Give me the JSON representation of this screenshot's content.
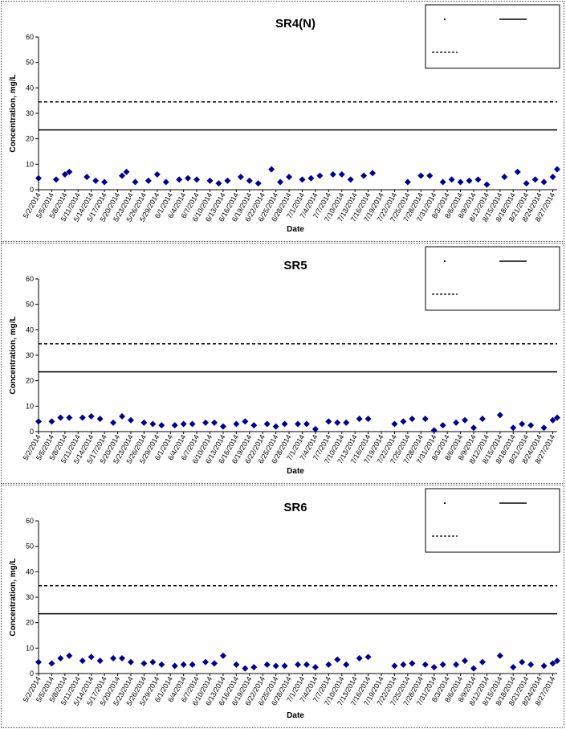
{
  "chart_data": [
    {
      "type": "scatter",
      "title": "SR4(N)",
      "xlabel": "Date",
      "ylabel": "Concentration, mg/L",
      "ylim": [
        0,
        60
      ],
      "yticks": [
        0,
        10,
        20,
        30,
        40,
        50,
        60
      ],
      "x_tick_labels": [
        "5/2/2014",
        "5/5/2014",
        "5/8/2014",
        "5/11/2014",
        "5/14/2014",
        "5/17/2014",
        "5/20/2014",
        "5/23/2014",
        "5/26/2014",
        "5/29/2014",
        "6/1/2014",
        "6/4/2014",
        "6/7/2014",
        "6/10/2014",
        "6/13/2014",
        "6/16/2014",
        "6/19/2014",
        "6/22/2014",
        "6/25/2014",
        "6/28/2014",
        "7/1/2014",
        "7/4/2014",
        "7/7/2014",
        "7/10/2014",
        "7/13/2014",
        "7/16/2014",
        "7/19/2014",
        "7/22/2014",
        "7/25/2014",
        "7/28/2014",
        "7/31/2014",
        "8/3/2014",
        "8/6/2014",
        "8/9/2014",
        "8/12/2014",
        "8/15/2014",
        "8/18/2014",
        "8/21/2014",
        "8/24/2014",
        "8/27/2014"
      ],
      "x_start": "5/2/2014",
      "x_end": "8/28/2014",
      "series": [
        {
          "marker": "diamond",
          "color": "#00008B",
          "x": [
            "5/2/2014",
            "5/6/2014",
            "5/8/2014",
            "5/9/2014",
            "5/13/2014",
            "5/15/2014",
            "5/17/2014",
            "5/21/2014",
            "5/22/2014",
            "5/24/2014",
            "5/27/2014",
            "5/29/2014",
            "5/31/2014",
            "6/3/2014",
            "6/5/2014",
            "6/7/2014",
            "6/10/2014",
            "6/12/2014",
            "6/14/2014",
            "6/17/2014",
            "6/19/2014",
            "6/21/2014",
            "6/24/2014",
            "6/26/2014",
            "6/28/2014",
            "7/1/2014",
            "7/3/2014",
            "7/5/2014",
            "7/8/2014",
            "7/10/2014",
            "7/12/2014",
            "7/15/2014",
            "7/17/2014",
            "7/25/2014",
            "7/28/2014",
            "7/30/2014",
            "8/2/2014",
            "8/4/2014",
            "8/6/2014",
            "8/8/2014",
            "8/10/2014",
            "8/12/2014",
            "8/16/2014",
            "8/19/2014",
            "8/21/2014",
            "8/23/2014",
            "8/25/2014",
            "8/27/2014",
            "8/28/2014"
          ],
          "y": [
            4.5,
            4,
            6,
            7,
            5,
            3.5,
            3,
            5.5,
            7,
            3,
            3.5,
            6,
            3,
            4,
            4.5,
            4,
            3.5,
            2.5,
            3.5,
            5,
            3.5,
            2.5,
            8,
            3,
            5,
            4,
            4.5,
            5.5,
            6,
            6,
            4,
            5.5,
            6.5,
            3,
            5.5,
            5.5,
            3,
            4,
            3,
            3.5,
            4,
            2,
            5,
            7,
            2.5,
            4,
            3,
            5,
            8
          ]
        },
        {
          "name": "",
          "line": "solid",
          "color": "#000000",
          "y": 23.5
        },
        {
          "name": "",
          "line": "dashed",
          "color": "#000000",
          "y": 34.5
        }
      ],
      "grid": false,
      "legend": "top-right"
    },
    {
      "type": "scatter",
      "title": "SR5",
      "xlabel": "Date",
      "ylabel": "Concentration, mg/L",
      "ylim": [
        0,
        60
      ],
      "yticks": [
        0,
        10,
        20,
        30,
        40,
        50,
        60
      ],
      "x_tick_labels": [
        "5/2/2014",
        "5/5/2014",
        "5/8/2014",
        "5/11/2014",
        "5/14/2014",
        "5/17/2014",
        "5/20/2014",
        "5/23/2014",
        "5/26/2014",
        "5/29/2014",
        "6/1/2014",
        "6/4/2014",
        "6/7/2014",
        "6/10/2014",
        "6/13/2014",
        "6/16/2014",
        "6/19/2014",
        "6/22/2014",
        "6/25/2014",
        "6/28/2014",
        "7/1/2014",
        "7/4/2014",
        "7/7/2014",
        "7/10/2014",
        "7/13/2014",
        "7/16/2014",
        "7/19/2014",
        "7/22/2014",
        "7/25/2014",
        "7/28/2014",
        "7/31/2014",
        "8/3/2014",
        "8/6/2014",
        "8/9/2014",
        "8/12/2014",
        "8/15/2014",
        "8/18/2014",
        "8/21/2014",
        "8/24/2014",
        "8/27/2014"
      ],
      "x_start": "5/2/2014",
      "x_end": "8/28/2014",
      "series": [
        {
          "marker": "diamond",
          "color": "#00008B",
          "x": [
            "5/2/2014",
            "5/5/2014",
            "5/7/2014",
            "5/9/2014",
            "5/12/2014",
            "5/14/2014",
            "5/16/2014",
            "5/19/2014",
            "5/21/2014",
            "5/23/2014",
            "5/26/2014",
            "5/28/2014",
            "5/30/2014",
            "6/2/2014",
            "6/4/2014",
            "6/6/2014",
            "6/9/2014",
            "6/11/2014",
            "6/13/2014",
            "6/16/2014",
            "6/18/2014",
            "6/20/2014",
            "6/23/2014",
            "6/25/2014",
            "6/27/2014",
            "6/30/2014",
            "7/2/2014",
            "7/4/2014",
            "7/7/2014",
            "7/9/2014",
            "7/11/2014",
            "7/14/2014",
            "7/16/2014",
            "7/22/2014",
            "7/24/2014",
            "7/26/2014",
            "7/29/2014",
            "7/31/2014",
            "8/2/2014",
            "8/5/2014",
            "8/7/2014",
            "8/9/2014",
            "8/11/2014",
            "8/15/2014",
            "8/18/2014",
            "8/20/2014",
            "8/22/2014",
            "8/25/2014",
            "8/27/2014",
            "8/28/2014"
          ],
          "y": [
            4,
            4,
            5.5,
            5.5,
            5.5,
            6,
            5,
            3.5,
            6,
            4.5,
            3.5,
            3,
            2.5,
            2.5,
            3,
            3,
            3.5,
            3.5,
            2,
            3,
            4,
            2.5,
            3,
            2,
            3,
            3,
            3,
            1,
            4,
            3.5,
            3.5,
            5,
            5,
            3,
            4,
            5,
            5,
            0.5,
            2.5,
            3.5,
            4.5,
            1.5,
            5,
            6.5,
            1.5,
            3,
            2.5,
            1.5,
            4.5,
            5.5
          ]
        },
        {
          "name": "",
          "line": "solid",
          "color": "#000000",
          "y": 23.5
        },
        {
          "name": "",
          "line": "dashed",
          "color": "#000000",
          "y": 34.5
        }
      ],
      "grid": false,
      "legend": "top-right"
    },
    {
      "type": "scatter",
      "title": "SR6",
      "xlabel": "Date",
      "ylabel": "Concentration, mg/L",
      "ylim": [
        0,
        60
      ],
      "yticks": [
        0,
        10,
        20,
        30,
        40,
        50,
        60
      ],
      "x_tick_labels": [
        "5/2/2014",
        "5/5/2014",
        "5/8/2014",
        "5/11/2014",
        "5/14/2014",
        "5/17/2014",
        "5/20/2014",
        "5/23/2014",
        "5/26/2014",
        "5/29/2014",
        "6/1/2014",
        "6/4/2014",
        "6/7/2014",
        "6/10/2014",
        "6/13/2014",
        "6/16/2014",
        "6/19/2014",
        "6/22/2014",
        "6/25/2014",
        "6/28/2014",
        "7/1/2014",
        "7/4/2014",
        "7/7/2014",
        "7/10/2014",
        "7/13/2014",
        "7/16/2014",
        "7/19/2014",
        "7/22/2014",
        "7/25/2014",
        "7/28/2014",
        "7/31/2014",
        "8/3/2014",
        "8/6/2014",
        "8/9/2014",
        "8/12/2014",
        "8/15/2014",
        "8/18/2014",
        "8/21/2014",
        "8/24/2014",
        "8/27/2014"
      ],
      "x_start": "5/2/2014",
      "x_end": "8/28/2014",
      "series": [
        {
          "marker": "diamond",
          "color": "#00008B",
          "x": [
            "5/2/2014",
            "5/5/2014",
            "5/7/2014",
            "5/9/2014",
            "5/12/2014",
            "5/14/2014",
            "5/16/2014",
            "5/19/2014",
            "5/21/2014",
            "5/23/2014",
            "5/26/2014",
            "5/28/2014",
            "5/30/2014",
            "6/2/2014",
            "6/4/2014",
            "6/6/2014",
            "6/9/2014",
            "6/11/2014",
            "6/13/2014",
            "6/16/2014",
            "6/18/2014",
            "6/20/2014",
            "6/23/2014",
            "6/25/2014",
            "6/27/2014",
            "6/30/2014",
            "7/2/2014",
            "7/4/2014",
            "7/7/2014",
            "7/9/2014",
            "7/11/2014",
            "7/14/2014",
            "7/16/2014",
            "7/22/2014",
            "7/24/2014",
            "7/26/2014",
            "7/29/2014",
            "7/31/2014",
            "8/2/2014",
            "8/5/2014",
            "8/7/2014",
            "8/9/2014",
            "8/11/2014",
            "8/15/2014",
            "8/18/2014",
            "8/20/2014",
            "8/22/2014",
            "8/25/2014",
            "8/27/2014",
            "8/28/2014"
          ],
          "y": [
            4.5,
            4,
            6,
            7,
            5,
            6.5,
            5,
            6,
            6,
            4.5,
            4,
            4.5,
            3.5,
            3,
            3.5,
            3.5,
            4.5,
            4,
            7,
            3.5,
            2,
            2.5,
            3.5,
            3,
            3,
            3.5,
            3.5,
            2.5,
            3.5,
            5.5,
            3.5,
            6,
            6.5,
            3,
            3.5,
            4,
            3.5,
            2.5,
            3.5,
            3.5,
            5,
            2,
            4.5,
            7,
            2.5,
            4.5,
            3.5,
            3,
            4,
            5
          ]
        },
        {
          "name": "",
          "line": "solid",
          "color": "#000000",
          "y": 23.5
        },
        {
          "name": "",
          "line": "dashed",
          "color": "#000000",
          "y": 34.5
        }
      ],
      "grid": false,
      "legend": "top-right"
    }
  ]
}
